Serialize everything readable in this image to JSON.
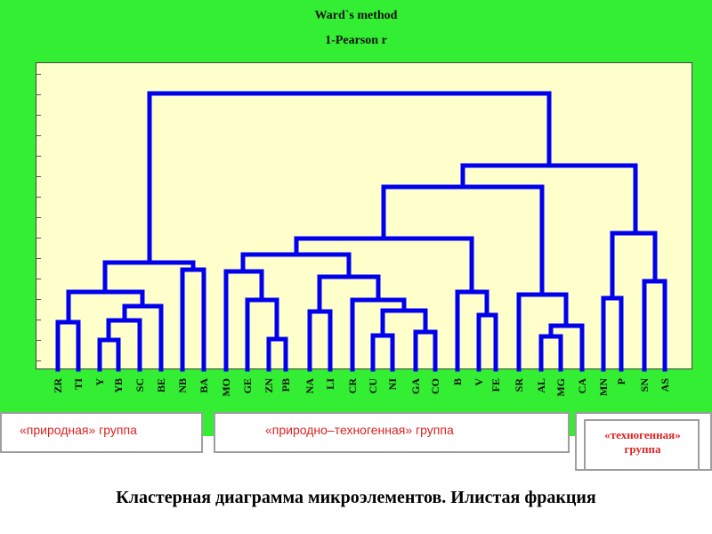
{
  "title": "Ward`s method",
  "subtitle": "1-Pearson r",
  "leaves": [
    "ZR",
    "TI",
    "Y",
    "YB",
    "SC",
    "BE",
    "NB",
    "BA",
    "MO",
    "GE",
    "ZN",
    "PB",
    "NA",
    "LI",
    "CR",
    "CU",
    "NI",
    "GA",
    "CO",
    "B",
    "V",
    "FE",
    "SR",
    "AL",
    "MG",
    "CA",
    "MN",
    "P",
    "SN",
    "AS"
  ],
  "groups": {
    "natural": "«природная» группа",
    "mixed": "«природно–техногенная» группа",
    "technogenic": "«техногенная» группа"
  },
  "caption": "Кластерная диаграмма микроэлементов. Илистая фракция",
  "colors": {
    "background": "#33ee33",
    "plot": "#ffffcc",
    "dendrogram": "#0000ee",
    "group_label": "#dd2222"
  }
}
